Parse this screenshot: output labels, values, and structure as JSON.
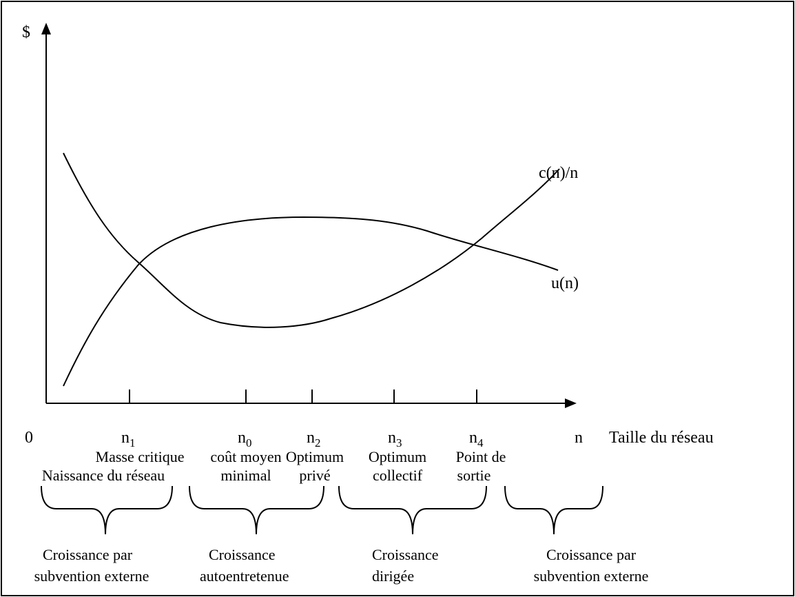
{
  "y_axis_label": "$",
  "x_axis_label": "Taille du réseau",
  "curves": [
    {
      "label": "c(n)/n"
    },
    {
      "label": "u(n)"
    }
  ],
  "points": [
    {
      "label": "0"
    },
    {
      "base": "n",
      "sub": "1",
      "lines": [
        "Masse critique",
        "Naissance du réseau"
      ]
    },
    {
      "base": "n",
      "sub": "0",
      "lines": [
        "coût moyen",
        "minimal"
      ]
    },
    {
      "base": "n",
      "sub": "2",
      "lines": [
        "Optimum",
        "privé"
      ]
    },
    {
      "base": "n",
      "sub": "3",
      "lines": [
        "Optimum",
        "collectif"
      ]
    },
    {
      "base": "n",
      "sub": "4",
      "lines": [
        "Point de",
        "sortie"
      ]
    },
    {
      "label": "n"
    }
  ],
  "phases": [
    {
      "lines": [
        "Croissance par",
        "subvention externe"
      ]
    },
    {
      "lines": [
        "Croissance",
        "autoentretenue"
      ]
    },
    {
      "lines": [
        "Croissance",
        "dirigée"
      ]
    },
    {
      "lines": [
        "Croissance par",
        "subvention externe"
      ]
    }
  ]
}
